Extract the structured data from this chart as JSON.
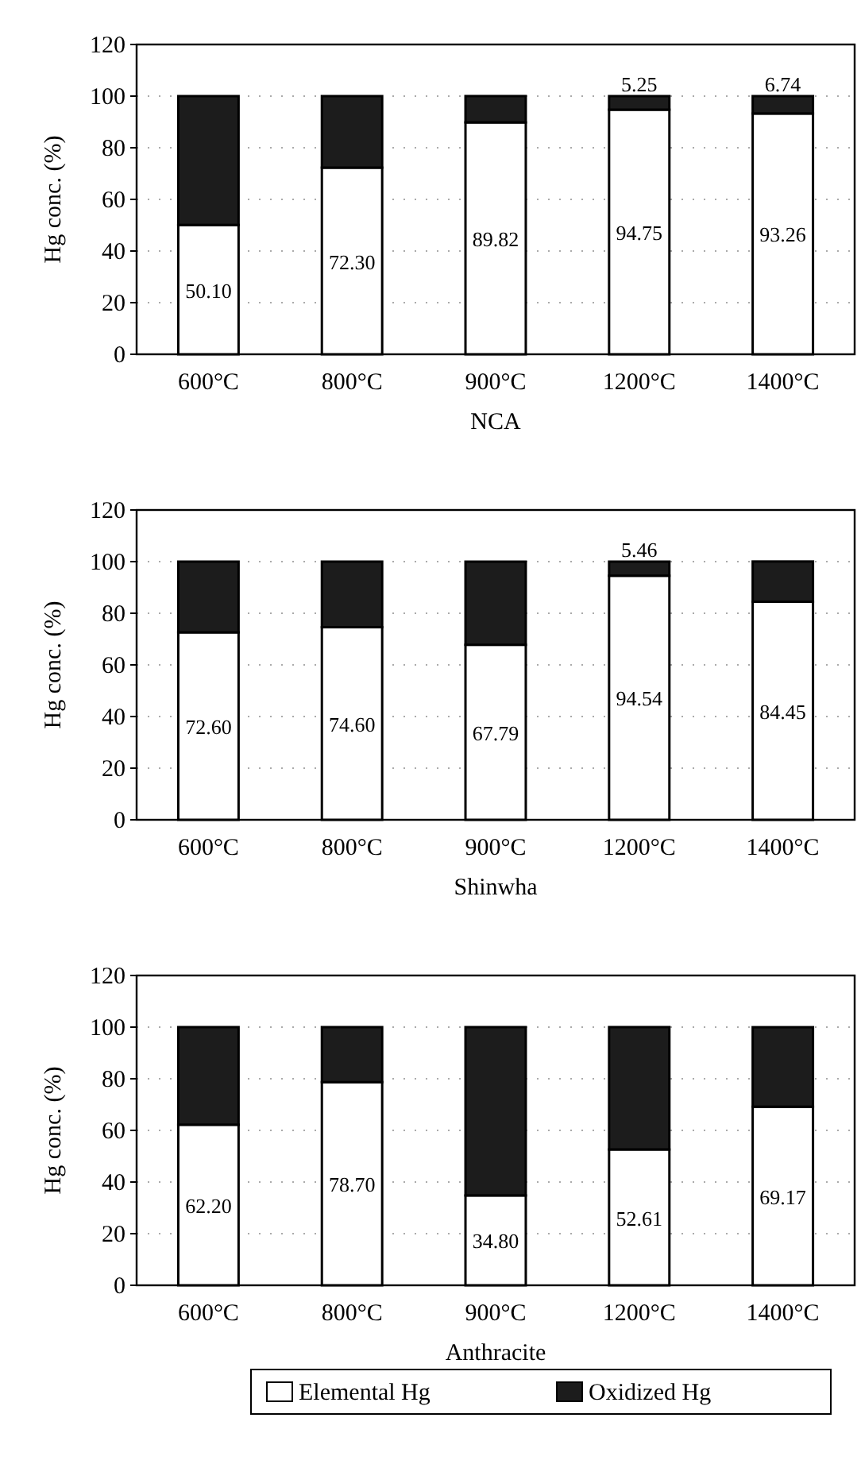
{
  "chart_data": [
    {
      "type": "bar",
      "stacked": true,
      "xlabel": "NCA",
      "ylabel": "Hg conc. (%)",
      "categories": [
        "600°C",
        "800°C",
        "900°C",
        "1200°C",
        "1400°C"
      ],
      "ylim": [
        0,
        120
      ],
      "yticks": [
        0,
        20,
        40,
        60,
        80,
        100,
        120
      ],
      "grid": "y",
      "legend": false,
      "series": [
        {
          "color": "#ffffff",
          "values": [
            50.1,
            72.3,
            89.82,
            94.75,
            93.26
          ],
          "value_labels": [
            "50.10",
            "72.30",
            "89.82",
            "94.75",
            "93.26"
          ]
        },
        {
          "color": "#1c1c1c",
          "values": [
            49.9,
            27.7,
            10.2,
            5.25,
            6.74
          ],
          "value_labels": [
            null,
            null,
            null,
            "5.25",
            "6.74"
          ]
        }
      ]
    },
    {
      "type": "bar",
      "stacked": true,
      "xlabel": "Shinwha",
      "ylabel": "Hg conc. (%)",
      "categories": [
        "600°C",
        "800°C",
        "900°C",
        "1200°C",
        "1400°C"
      ],
      "ylim": [
        0,
        120
      ],
      "yticks": [
        0,
        20,
        40,
        60,
        80,
        100,
        120
      ],
      "grid": "y",
      "legend": false,
      "series": [
        {
          "color": "#ffffff",
          "values": [
            72.6,
            74.6,
            67.79,
            94.54,
            84.45
          ],
          "value_labels": [
            "72.60",
            "74.60",
            "67.79",
            "94.54",
            "84.45"
          ]
        },
        {
          "color": "#1c1c1c",
          "values": [
            27.4,
            25.4,
            32.2,
            5.46,
            15.6
          ],
          "value_labels": [
            null,
            null,
            null,
            "5.46",
            null
          ]
        }
      ]
    },
    {
      "type": "bar",
      "stacked": true,
      "xlabel": "Anthracite",
      "ylabel": "Hg conc. (%)",
      "categories": [
        "600°C",
        "800°C",
        "900°C",
        "1200°C",
        "1400°C"
      ],
      "ylim": [
        0,
        120
      ],
      "yticks": [
        0,
        20,
        40,
        60,
        80,
        100,
        120
      ],
      "grid": "y",
      "legend": "bottom",
      "series": [
        {
          "name": "Elemental Hg",
          "color": "#ffffff",
          "values": [
            62.2,
            78.7,
            34.8,
            52.61,
            69.17
          ],
          "value_labels": [
            "62.20",
            "78.70",
            "34.80",
            "52.61",
            "69.17"
          ]
        },
        {
          "name": "Oxidized Hg",
          "color": "#1c1c1c",
          "values": [
            37.8,
            21.3,
            65.2,
            47.4,
            30.8
          ]
        }
      ]
    }
  ]
}
